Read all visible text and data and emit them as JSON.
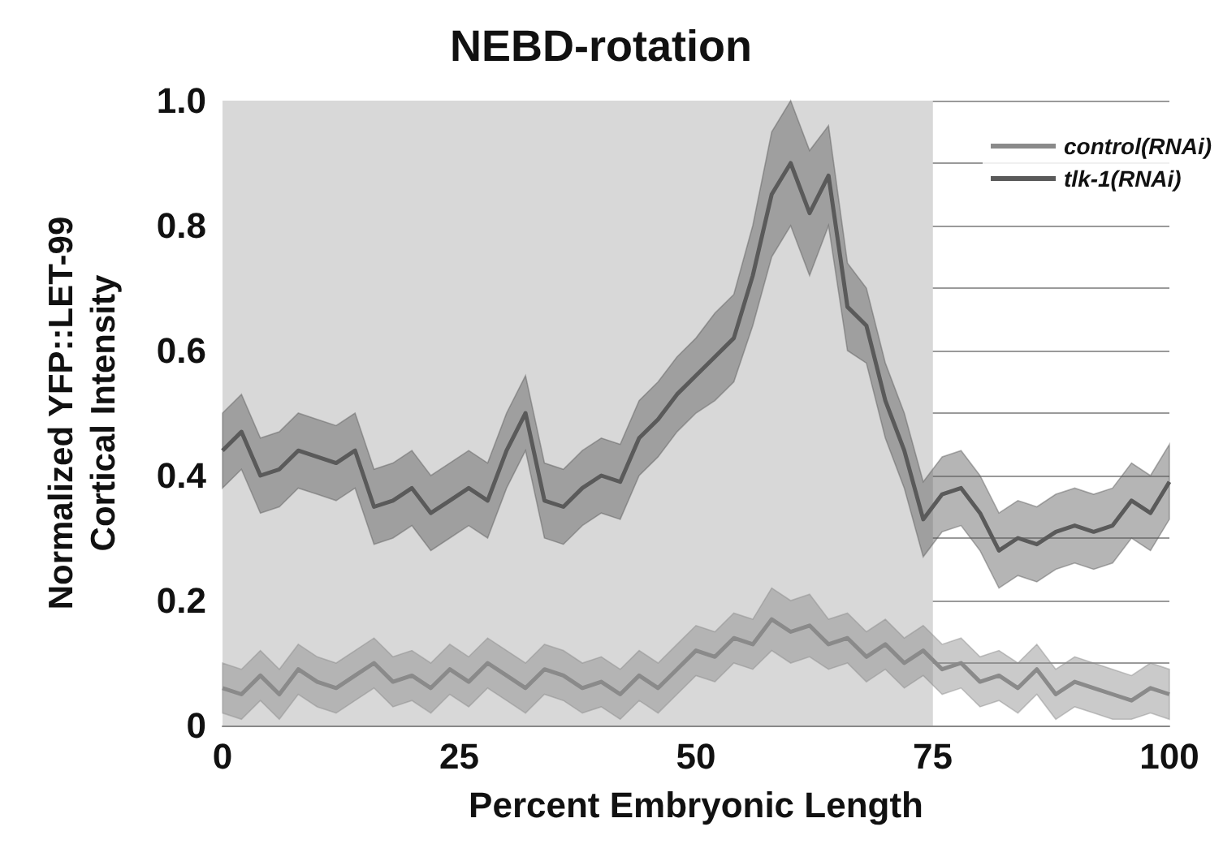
{
  "chart_data": {
    "type": "line",
    "title": "NEBD-rotation",
    "xlabel": "Percent Embryonic Length",
    "ylabel": "Normalized YFP::LET-99\nCortical Intensity",
    "x": [
      0,
      2,
      4,
      6,
      8,
      10,
      12,
      14,
      16,
      18,
      20,
      22,
      24,
      26,
      28,
      30,
      32,
      34,
      36,
      38,
      40,
      42,
      44,
      46,
      48,
      50,
      52,
      54,
      56,
      58,
      60,
      62,
      64,
      66,
      68,
      70,
      72,
      74,
      76,
      78,
      80,
      82,
      84,
      86,
      88,
      90,
      92,
      94,
      96,
      98,
      100
    ],
    "series": [
      {
        "name": "control(RNAi)",
        "color": "#8a8a8a",
        "values": [
          0.06,
          0.05,
          0.08,
          0.05,
          0.09,
          0.07,
          0.06,
          0.08,
          0.1,
          0.07,
          0.08,
          0.06,
          0.09,
          0.07,
          0.1,
          0.08,
          0.06,
          0.09,
          0.08,
          0.06,
          0.07,
          0.05,
          0.08,
          0.06,
          0.09,
          0.12,
          0.11,
          0.14,
          0.13,
          0.17,
          0.15,
          0.16,
          0.13,
          0.14,
          0.11,
          0.13,
          0.1,
          0.12,
          0.09,
          0.1,
          0.07,
          0.08,
          0.06,
          0.09,
          0.05,
          0.07,
          0.06,
          0.05,
          0.04,
          0.06,
          0.05
        ],
        "lower": [
          0.02,
          0.01,
          0.04,
          0.01,
          0.05,
          0.03,
          0.02,
          0.04,
          0.06,
          0.03,
          0.04,
          0.02,
          0.05,
          0.03,
          0.06,
          0.04,
          0.02,
          0.05,
          0.04,
          0.02,
          0.03,
          0.01,
          0.04,
          0.02,
          0.05,
          0.08,
          0.07,
          0.1,
          0.09,
          0.12,
          0.1,
          0.11,
          0.09,
          0.1,
          0.07,
          0.09,
          0.06,
          0.08,
          0.05,
          0.06,
          0.03,
          0.04,
          0.02,
          0.05,
          0.01,
          0.03,
          0.02,
          0.01,
          0.01,
          0.02,
          0.01
        ],
        "upper": [
          0.1,
          0.09,
          0.12,
          0.09,
          0.13,
          0.11,
          0.1,
          0.12,
          0.14,
          0.11,
          0.12,
          0.1,
          0.13,
          0.11,
          0.14,
          0.12,
          0.1,
          0.13,
          0.12,
          0.1,
          0.11,
          0.09,
          0.12,
          0.1,
          0.13,
          0.16,
          0.15,
          0.18,
          0.17,
          0.22,
          0.2,
          0.21,
          0.17,
          0.18,
          0.15,
          0.17,
          0.14,
          0.16,
          0.13,
          0.14,
          0.11,
          0.12,
          0.1,
          0.13,
          0.09,
          0.11,
          0.1,
          0.09,
          0.08,
          0.1,
          0.09
        ]
      },
      {
        "name": "tlk-1(RNAi)",
        "color": "#5a5a5a",
        "values": [
          0.44,
          0.47,
          0.4,
          0.41,
          0.44,
          0.43,
          0.42,
          0.44,
          0.35,
          0.36,
          0.38,
          0.34,
          0.36,
          0.38,
          0.36,
          0.44,
          0.5,
          0.36,
          0.35,
          0.38,
          0.4,
          0.39,
          0.46,
          0.49,
          0.53,
          0.56,
          0.59,
          0.62,
          0.72,
          0.85,
          0.9,
          0.82,
          0.88,
          0.67,
          0.64,
          0.52,
          0.44,
          0.33,
          0.37,
          0.38,
          0.34,
          0.28,
          0.3,
          0.29,
          0.31,
          0.32,
          0.31,
          0.32,
          0.36,
          0.34,
          0.39
        ],
        "lower": [
          0.38,
          0.41,
          0.34,
          0.35,
          0.38,
          0.37,
          0.36,
          0.38,
          0.29,
          0.3,
          0.32,
          0.28,
          0.3,
          0.32,
          0.3,
          0.38,
          0.44,
          0.3,
          0.29,
          0.32,
          0.34,
          0.33,
          0.4,
          0.43,
          0.47,
          0.5,
          0.52,
          0.55,
          0.64,
          0.75,
          0.8,
          0.72,
          0.8,
          0.6,
          0.58,
          0.46,
          0.38,
          0.27,
          0.31,
          0.32,
          0.28,
          0.22,
          0.24,
          0.23,
          0.25,
          0.26,
          0.25,
          0.26,
          0.3,
          0.28,
          0.33
        ],
        "upper": [
          0.5,
          0.53,
          0.46,
          0.47,
          0.5,
          0.49,
          0.48,
          0.5,
          0.41,
          0.42,
          0.44,
          0.4,
          0.42,
          0.44,
          0.42,
          0.5,
          0.56,
          0.42,
          0.41,
          0.44,
          0.46,
          0.45,
          0.52,
          0.55,
          0.59,
          0.62,
          0.66,
          0.69,
          0.8,
          0.95,
          1.0,
          0.92,
          0.96,
          0.74,
          0.7,
          0.58,
          0.5,
          0.39,
          0.43,
          0.44,
          0.4,
          0.34,
          0.36,
          0.35,
          0.37,
          0.38,
          0.37,
          0.38,
          0.42,
          0.4,
          0.45
        ]
      }
    ],
    "xlim": [
      0,
      100
    ],
    "xticks": [
      0,
      25,
      50,
      75,
      100
    ],
    "ylim": [
      0,
      1
    ],
    "yticks": [
      0,
      {
        "value": 0.1,
        "label": null
      },
      0.2,
      {
        "value": 0.3,
        "label": null
      },
      0.4,
      {
        "value": 0.5,
        "label": null
      },
      0.6,
      {
        "value": 0.7,
        "label": null
      },
      0.8,
      {
        "value": 0.9,
        "label": null
      },
      {
        "value": 1,
        "label": "1.0"
      }
    ],
    "bands": [
      {
        "axis": "x",
        "from": 0,
        "to": 75,
        "color": "#d8d8d8"
      }
    ],
    "grid": "y",
    "legend": "top right",
    "marker": "none",
    "line_style": "solid"
  }
}
